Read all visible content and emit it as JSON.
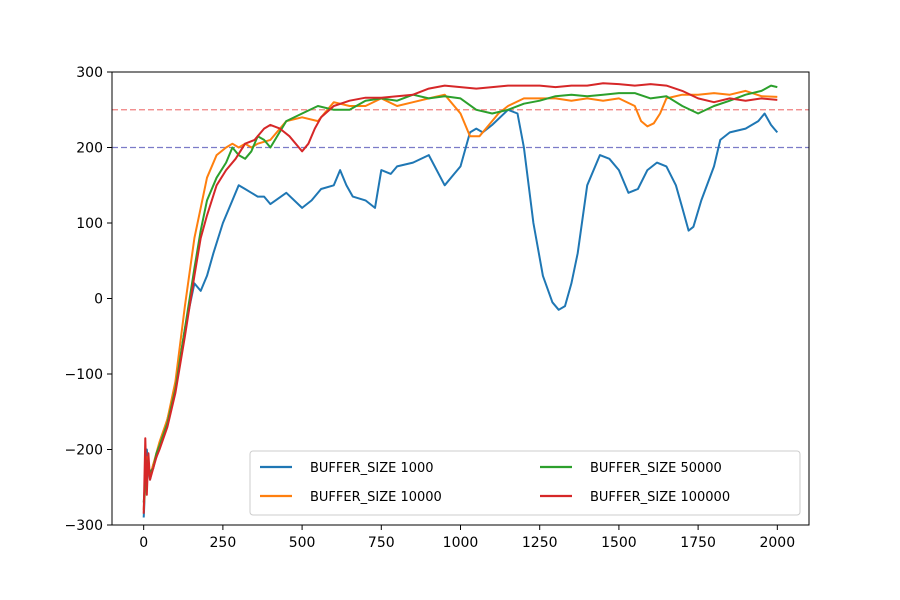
{
  "chart_data": {
    "type": "line",
    "title": "",
    "xlabel": "",
    "ylabel": "",
    "xlim": [
      -100,
      2100
    ],
    "ylim": [
      -300,
      300
    ],
    "xticks": [
      0,
      250,
      500,
      750,
      1000,
      1250,
      1500,
      1750,
      2000
    ],
    "yticks": [
      -300,
      -200,
      -100,
      0,
      100,
      200,
      300
    ],
    "xtick_labels": [
      "0",
      "250",
      "500",
      "750",
      "1000",
      "1250",
      "1500",
      "1750",
      "2000"
    ],
    "ytick_labels": [
      "−300",
      "−200",
      "−100",
      "0",
      "100",
      "200",
      "300"
    ],
    "grid": false,
    "legend": {
      "placement": "lower-right",
      "columns": 2
    },
    "reference_lines": [
      {
        "y": 250,
        "color": "#f08080",
        "style": "dashed"
      },
      {
        "y": 200,
        "color": "#7b7bc8",
        "style": "dashed"
      }
    ],
    "series": [
      {
        "name": "BUFFER_SIZE 1000",
        "color": "#1f77b4",
        "x": [
          0,
          10,
          20,
          30,
          40,
          50,
          75,
          100,
          130,
          160,
          180,
          200,
          220,
          250,
          280,
          300,
          320,
          340,
          360,
          380,
          400,
          450,
          500,
          530,
          560,
          600,
          620,
          640,
          660,
          700,
          730,
          750,
          780,
          800,
          850,
          900,
          950,
          980,
          1000,
          1030,
          1050,
          1070,
          1100,
          1150,
          1180,
          1200,
          1230,
          1260,
          1290,
          1310,
          1330,
          1350,
          1370,
          1400,
          1440,
          1470,
          1500,
          1530,
          1560,
          1590,
          1620,
          1650,
          1680,
          1700,
          1720,
          1735,
          1760,
          1800,
          1820,
          1850,
          1900,
          1940,
          1960,
          1980,
          1990,
          2000
        ],
        "y": [
          -290,
          -200,
          -240,
          -220,
          -210,
          -195,
          -160,
          -120,
          -40,
          20,
          10,
          30,
          60,
          100,
          130,
          150,
          145,
          140,
          135,
          135,
          125,
          140,
          120,
          130,
          145,
          150,
          170,
          150,
          135,
          130,
          120,
          170,
          165,
          175,
          180,
          190,
          150,
          165,
          175,
          220,
          225,
          220,
          230,
          250,
          245,
          200,
          100,
          30,
          -5,
          -15,
          -10,
          20,
          60,
          150,
          190,
          185,
          170,
          140,
          145,
          170,
          180,
          175,
          150,
          120,
          90,
          95,
          130,
          175,
          210,
          220,
          225,
          235,
          245,
          230,
          225,
          220
        ]
      },
      {
        "name": "BUFFER_SIZE 10000",
        "color": "#ff7f0e",
        "x": [
          0,
          10,
          20,
          30,
          40,
          50,
          75,
          100,
          130,
          160,
          180,
          200,
          230,
          260,
          280,
          300,
          320,
          340,
          360,
          400,
          450,
          500,
          550,
          600,
          650,
          700,
          750,
          800,
          850,
          900,
          950,
          1000,
          1030,
          1060,
          1090,
          1120,
          1150,
          1200,
          1250,
          1300,
          1350,
          1400,
          1450,
          1500,
          1550,
          1570,
          1590,
          1610,
          1630,
          1650,
          1700,
          1750,
          1800,
          1850,
          1900,
          1950,
          2000
        ],
        "y": [
          -280,
          -210,
          -235,
          -220,
          -205,
          -190,
          -160,
          -110,
          -10,
          80,
          120,
          160,
          190,
          200,
          205,
          200,
          205,
          200,
          205,
          210,
          235,
          240,
          235,
          260,
          255,
          255,
          265,
          255,
          260,
          265,
          270,
          245,
          215,
          215,
          230,
          245,
          255,
          265,
          265,
          265,
          262,
          265,
          262,
          265,
          255,
          235,
          228,
          232,
          245,
          265,
          270,
          270,
          272,
          270,
          275,
          268,
          267
        ]
      },
      {
        "name": "BUFFER_SIZE 50000",
        "color": "#2ca02c",
        "x": [
          0,
          10,
          20,
          30,
          40,
          50,
          75,
          100,
          130,
          160,
          180,
          200,
          230,
          260,
          280,
          300,
          320,
          340,
          360,
          380,
          400,
          450,
          500,
          550,
          600,
          650,
          700,
          750,
          800,
          850,
          900,
          950,
          1000,
          1050,
          1100,
          1150,
          1200,
          1250,
          1300,
          1350,
          1400,
          1450,
          1500,
          1550,
          1600,
          1650,
          1700,
          1750,
          1800,
          1850,
          1900,
          1950,
          1980,
          2000
        ],
        "y": [
          -270,
          -215,
          -230,
          -225,
          -205,
          -195,
          -165,
          -120,
          -40,
          40,
          90,
          130,
          160,
          180,
          200,
          190,
          185,
          195,
          215,
          210,
          200,
          235,
          245,
          255,
          250,
          250,
          262,
          265,
          262,
          270,
          265,
          268,
          265,
          250,
          245,
          250,
          258,
          262,
          268,
          270,
          268,
          270,
          272,
          272,
          265,
          268,
          255,
          245,
          255,
          262,
          270,
          275,
          282,
          280
        ]
      },
      {
        "name": "BUFFER_SIZE 100000",
        "color": "#d62728",
        "x": [
          0,
          5,
          10,
          15,
          20,
          30,
          40,
          50,
          75,
          100,
          130,
          160,
          180,
          200,
          230,
          260,
          290,
          320,
          350,
          380,
          400,
          430,
          460,
          490,
          500,
          520,
          540,
          560,
          600,
          650,
          700,
          750,
          800,
          850,
          900,
          950,
          1000,
          1050,
          1100,
          1150,
          1200,
          1250,
          1300,
          1350,
          1400,
          1450,
          1500,
          1550,
          1600,
          1650,
          1700,
          1750,
          1800,
          1850,
          1900,
          1950,
          2000
        ],
        "y": [
          -285,
          -185,
          -260,
          -205,
          -240,
          -225,
          -210,
          -200,
          -170,
          -125,
          -50,
          30,
          80,
          110,
          150,
          170,
          185,
          205,
          210,
          225,
          230,
          225,
          215,
          200,
          195,
          205,
          225,
          240,
          255,
          262,
          266,
          266,
          268,
          270,
          278,
          282,
          280,
          278,
          280,
          282,
          282,
          282,
          280,
          282,
          282,
          285,
          284,
          282,
          284,
          282,
          275,
          265,
          260,
          265,
          262,
          265,
          263
        ]
      }
    ]
  }
}
